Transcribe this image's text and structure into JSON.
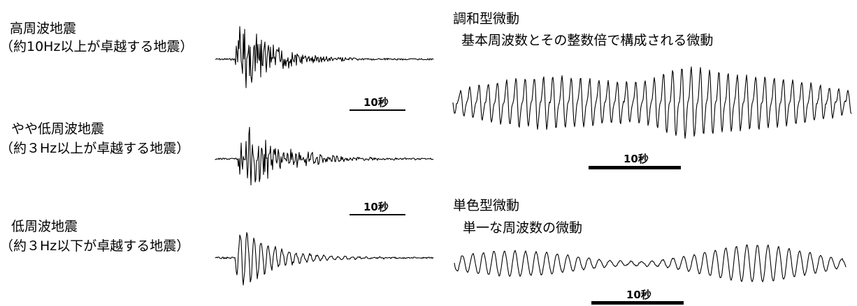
{
  "left_panels": [
    {
      "title": "高周波地震",
      "subtitle": "（約10Hz以上が卓越する地震）",
      "scale_label": "10秒",
      "decay": 0.022,
      "period": 4.0,
      "noise": 0.9
    },
    {
      "title": "やや低周波地震",
      "subtitle": "（約３Hz以上が卓越する地震）",
      "scale_label": "10秒",
      "decay": 0.018,
      "period": 6.0,
      "noise": 0.6
    },
    {
      "title": "低周波地震",
      "subtitle": "（約３Hz以下が卓越する地震）",
      "scale_label": "",
      "decay": 0.02,
      "period": 10.0,
      "noise": 0.2
    }
  ],
  "right_panels": [
    {
      "title": "調和型微動",
      "subtitle": "基本周波数とその整数倍で構成される微動",
      "scale_label": "10秒"
    },
    {
      "title": "単色型微動",
      "subtitle": "単一な周波数の微動",
      "scale_label": "10秒"
    }
  ],
  "colors": {
    "trace": "#000000",
    "background": "#ffffff"
  }
}
